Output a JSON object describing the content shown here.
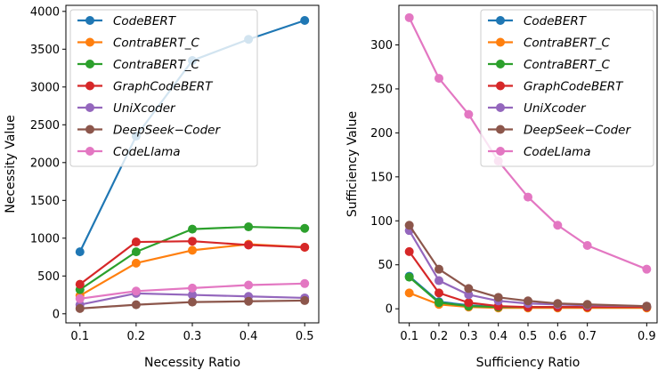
{
  "chart_data": [
    {
      "type": "line",
      "xlabel": "Necessity Ratio",
      "ylabel": "Necessity Value",
      "x": [
        0.1,
        0.2,
        0.3,
        0.4,
        0.5
      ],
      "xticks": [
        "0.1",
        "0.2",
        "0.3",
        "0.4",
        "0.5"
      ],
      "xlim": [
        0.075,
        0.525
      ],
      "ylim": [
        -120,
        4080
      ],
      "yticks": [
        0,
        500,
        1000,
        1500,
        2000,
        2500,
        3000,
        3500,
        4000
      ],
      "legend_position": "top-left",
      "grid": false,
      "series": [
        {
          "name": "CodeBERT",
          "color": "#1f77b4",
          "values": [
            820,
            2350,
            3350,
            3630,
            3880
          ]
        },
        {
          "name": "ContraBERT_C",
          "color": "#ff7f0e",
          "values": [
            240,
            670,
            840,
            920,
            880
          ]
        },
        {
          "name": "ContraBERT_C",
          "color": "#2ca02c",
          "values": [
            320,
            820,
            1120,
            1150,
            1130
          ]
        },
        {
          "name": "GraphCodeBERT",
          "color": "#d62728",
          "values": [
            390,
            950,
            960,
            910,
            880
          ]
        },
        {
          "name": "UniXcoder",
          "color": "#9467bd",
          "values": [
            120,
            270,
            250,
            230,
            210
          ]
        },
        {
          "name": "DeepSeek−Coder",
          "color": "#8c564b",
          "values": [
            70,
            120,
            155,
            165,
            175
          ]
        },
        {
          "name": "CodeLlama",
          "color": "#e377c2",
          "values": [
            200,
            300,
            340,
            380,
            400
          ]
        }
      ]
    },
    {
      "type": "line",
      "xlabel": "Sufficiency Ratio",
      "ylabel": "Sufficiency Value",
      "x": [
        0.1,
        0.2,
        0.3,
        0.4,
        0.5,
        0.6,
        0.7,
        0.9
      ],
      "xticks": [
        "0.1",
        "0.2",
        "0.3",
        "0.4",
        "0.5",
        "0.6",
        "0.7",
        "0.9"
      ],
      "xlim": [
        0.065,
        0.935
      ],
      "ylim": [
        -16,
        345
      ],
      "yticks": [
        0,
        50,
        100,
        150,
        200,
        250,
        300
      ],
      "legend_position": "top-right",
      "grid": false,
      "series": [
        {
          "name": "CodeBERT",
          "color": "#1f77b4",
          "values": [
            37,
            8,
            4,
            2,
            2,
            2,
            2,
            2
          ]
        },
        {
          "name": "ContraBERT_C",
          "color": "#ff7f0e",
          "values": [
            18,
            5,
            2,
            1,
            1,
            1,
            1,
            1
          ]
        },
        {
          "name": "ContraBERT_C",
          "color": "#2ca02c",
          "values": [
            36,
            7,
            3,
            2,
            2,
            2,
            2,
            2
          ]
        },
        {
          "name": "GraphCodeBERT",
          "color": "#d62728",
          "values": [
            65,
            18,
            7,
            3,
            2,
            2,
            2,
            2
          ]
        },
        {
          "name": "UniXcoder",
          "color": "#9467bd",
          "values": [
            89,
            32,
            16,
            9,
            6,
            5,
            4,
            3
          ]
        },
        {
          "name": "DeepSeek−Coder",
          "color": "#8c564b",
          "values": [
            95,
            45,
            23,
            13,
            9,
            6,
            5,
            3
          ]
        },
        {
          "name": "CodeLlama",
          "color": "#e377c2",
          "values": [
            331,
            262,
            221,
            168,
            127,
            95,
            72,
            45
          ]
        }
      ]
    }
  ]
}
